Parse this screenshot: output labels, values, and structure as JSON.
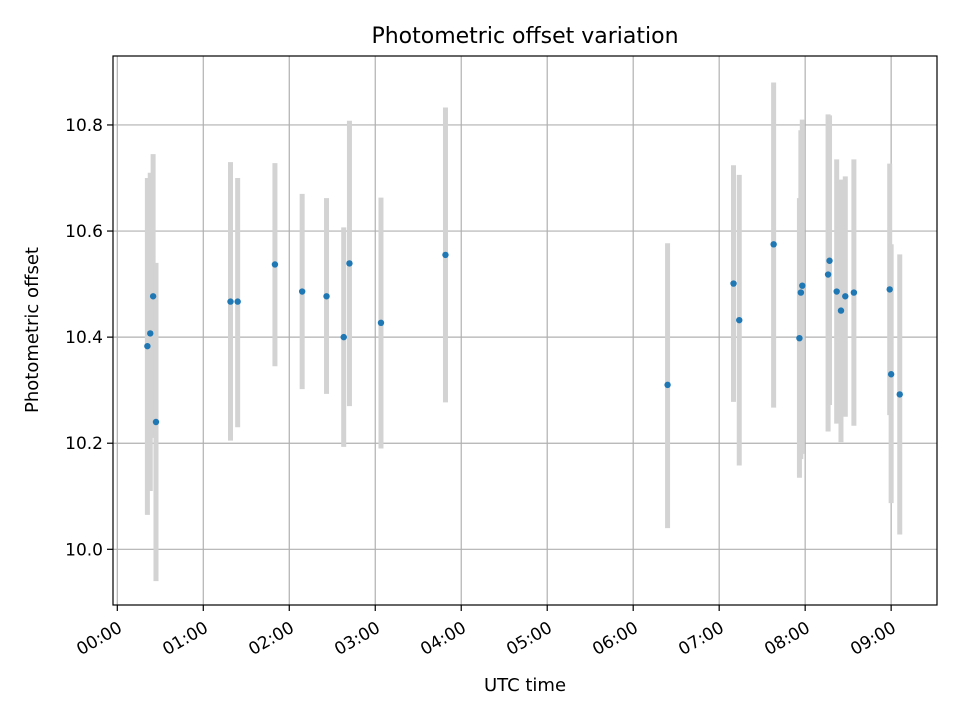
{
  "chart_data": {
    "type": "scatter",
    "title": "Photometric offset variation",
    "xlabel": "UTC time",
    "ylabel": "Photometric offset",
    "xlim": [
      "23:57",
      "09:32"
    ],
    "ylim": [
      9.895,
      10.93
    ],
    "grid": true,
    "colors": {
      "point": "#1f77b4",
      "errorbar": "#d3d3d3",
      "grid": "#b0b0b0"
    },
    "xticks": [
      "00:00",
      "01:00",
      "02:00",
      "03:00",
      "04:00",
      "05:00",
      "06:00",
      "07:00",
      "08:00",
      "09:00"
    ],
    "yticks": [
      "10.0",
      "10.2",
      "10.4",
      "10.6",
      "10.8"
    ],
    "points": [
      {
        "x": "00:21",
        "y": 10.383,
        "low": 10.065,
        "high": 10.7
      },
      {
        "x": "00:23",
        "y": 10.407,
        "low": 10.11,
        "high": 10.71
      },
      {
        "x": "00:25",
        "y": 10.477,
        "low": 10.21,
        "high": 10.745
      },
      {
        "x": "00:27",
        "y": 10.24,
        "low": 9.94,
        "high": 10.54
      },
      {
        "x": "01:19",
        "y": 10.467,
        "low": 10.205,
        "high": 10.73
      },
      {
        "x": "01:24",
        "y": 10.467,
        "low": 10.23,
        "high": 10.7
      },
      {
        "x": "01:50",
        "y": 10.537,
        "low": 10.345,
        "high": 10.728
      },
      {
        "x": "02:09",
        "y": 10.486,
        "low": 10.302,
        "high": 10.67
      },
      {
        "x": "02:26",
        "y": 10.477,
        "low": 10.293,
        "high": 10.662
      },
      {
        "x": "02:38",
        "y": 10.4,
        "low": 10.193,
        "high": 10.607
      },
      {
        "x": "02:42",
        "y": 10.539,
        "low": 10.27,
        "high": 10.808
      },
      {
        "x": "03:04",
        "y": 10.427,
        "low": 10.19,
        "high": 10.663
      },
      {
        "x": "03:49",
        "y": 10.555,
        "low": 10.277,
        "high": 10.833
      },
      {
        "x": "06:24",
        "y": 10.31,
        "low": 10.04,
        "high": 10.577
      },
      {
        "x": "07:10",
        "y": 10.501,
        "low": 10.278,
        "high": 10.724
      },
      {
        "x": "07:14",
        "y": 10.432,
        "low": 10.158,
        "high": 10.706
      },
      {
        "x": "07:38",
        "y": 10.575,
        "low": 10.267,
        "high": 10.88
      },
      {
        "x": "07:56",
        "y": 10.398,
        "low": 10.135,
        "high": 10.662
      },
      {
        "x": "07:57",
        "y": 10.484,
        "low": 10.17,
        "high": 10.79
      },
      {
        "x": "07:58",
        "y": 10.497,
        "low": 10.18,
        "high": 10.81
      },
      {
        "x": "08:16",
        "y": 10.518,
        "low": 10.222,
        "high": 10.82
      },
      {
        "x": "08:17",
        "y": 10.544,
        "low": 10.272,
        "high": 10.818
      },
      {
        "x": "08:22",
        "y": 10.486,
        "low": 10.237,
        "high": 10.735
      },
      {
        "x": "08:25",
        "y": 10.45,
        "low": 10.202,
        "high": 10.697
      },
      {
        "x": "08:28",
        "y": 10.477,
        "low": 10.25,
        "high": 10.703
      },
      {
        "x": "08:34",
        "y": 10.484,
        "low": 10.233,
        "high": 10.735
      },
      {
        "x": "08:59",
        "y": 10.49,
        "low": 10.253,
        "high": 10.727
      },
      {
        "x": "09:00",
        "y": 10.33,
        "low": 10.087,
        "high": 10.575
      },
      {
        "x": "09:06",
        "y": 10.292,
        "low": 10.028,
        "high": 10.556
      }
    ]
  }
}
